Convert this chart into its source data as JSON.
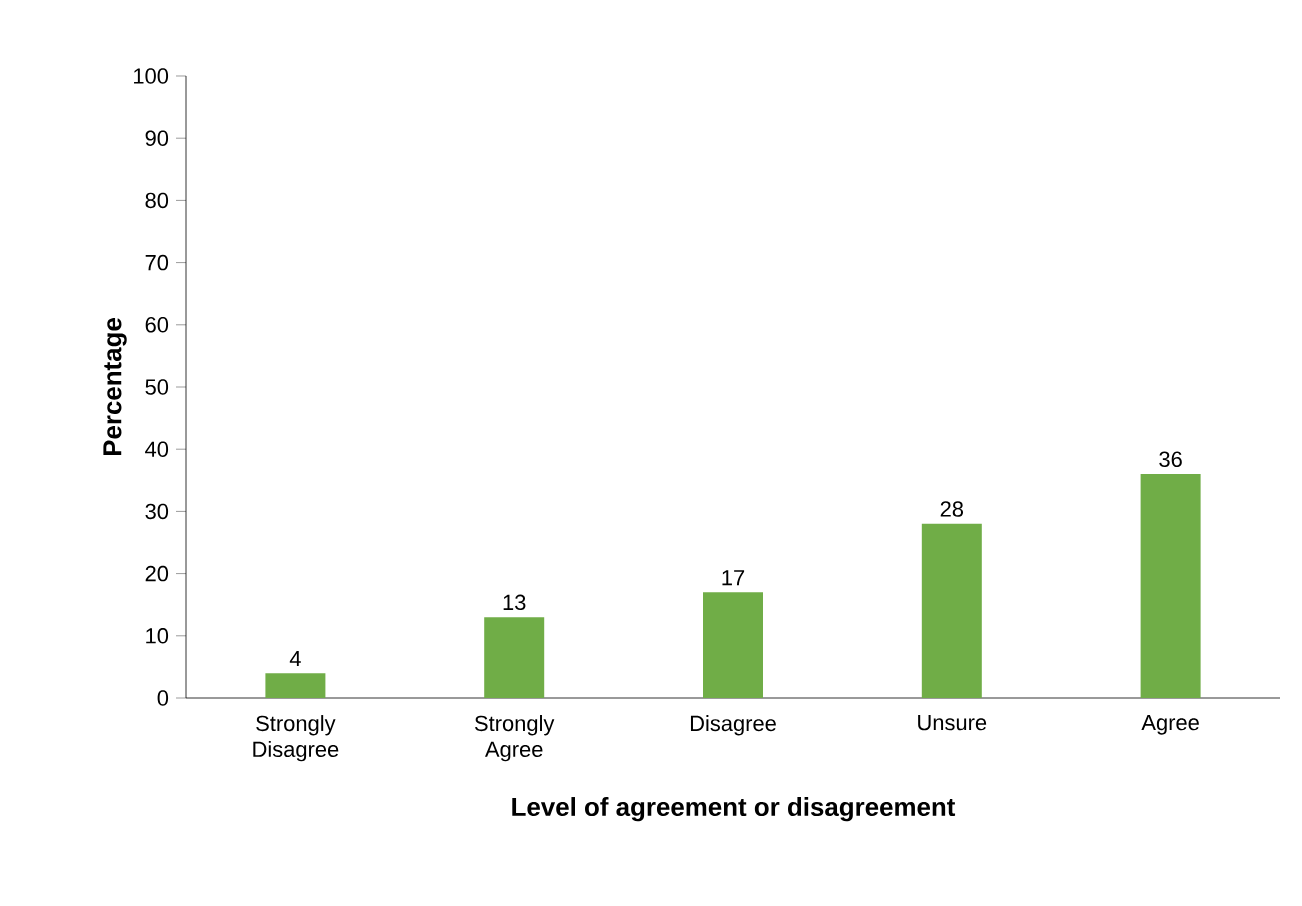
{
  "chart_data": {
    "type": "bar",
    "xlabel": "Level of agreement or disagreement",
    "ylabel": "Percentage",
    "categories": [
      "Strongly Disagree",
      "Strongly Agree",
      "Disagree",
      "Unsure",
      "Agree"
    ],
    "values": [
      4,
      13,
      17,
      28,
      36
    ],
    "color": "#70ad47",
    "ylim": [
      0,
      100
    ],
    "yticks": [
      0,
      10,
      20,
      30,
      40,
      50,
      60,
      70,
      80,
      90,
      100
    ],
    "data_labels": true
  }
}
